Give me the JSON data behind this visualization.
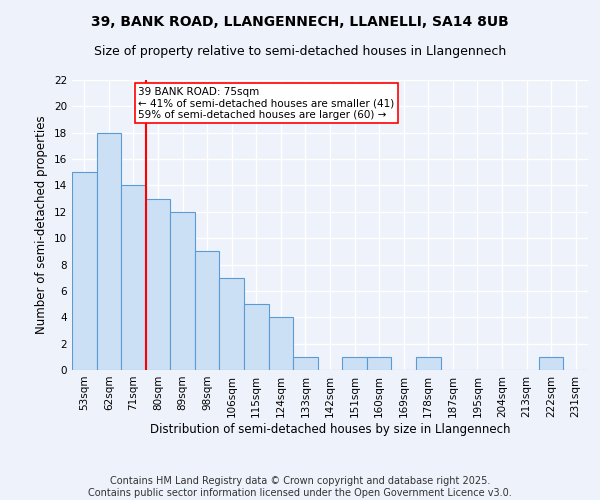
{
  "title": "39, BANK ROAD, LLANGENNECH, LLANELLI, SA14 8UB",
  "subtitle": "Size of property relative to semi-detached houses in Llangennech",
  "xlabel": "Distribution of semi-detached houses by size in Llangennech",
  "ylabel": "Number of semi-detached properties",
  "categories": [
    "53sqm",
    "62sqm",
    "71sqm",
    "80sqm",
    "89sqm",
    "98sqm",
    "106sqm",
    "115sqm",
    "124sqm",
    "133sqm",
    "142sqm",
    "151sqm",
    "160sqm",
    "169sqm",
    "178sqm",
    "187sqm",
    "195sqm",
    "204sqm",
    "213sqm",
    "222sqm",
    "231sqm"
  ],
  "values": [
    15,
    18,
    14,
    13,
    12,
    9,
    7,
    5,
    4,
    1,
    0,
    1,
    1,
    0,
    1,
    0,
    0,
    0,
    0,
    1,
    0
  ],
  "bar_color": "#cce0f5",
  "bar_edge_color": "#5b9bd5",
  "vline_x_index": 2,
  "vline_color": "red",
  "annotation_title": "39 BANK ROAD: 75sqm",
  "annotation_line1": "← 41% of semi-detached houses are smaller (41)",
  "annotation_line2": "59% of semi-detached houses are larger (60) →",
  "annotation_box_color": "white",
  "annotation_box_edge_color": "red",
  "ylim": [
    0,
    22
  ],
  "yticks": [
    0,
    2,
    4,
    6,
    8,
    10,
    12,
    14,
    16,
    18,
    20,
    22
  ],
  "footer_line1": "Contains HM Land Registry data © Crown copyright and database right 2025.",
  "footer_line2": "Contains public sector information licensed under the Open Government Licence v3.0.",
  "background_color": "#eef2fb",
  "grid_color": "#ffffff",
  "title_fontsize": 10,
  "subtitle_fontsize": 9,
  "axis_label_fontsize": 8.5,
  "tick_fontsize": 7.5,
  "footer_fontsize": 7,
  "annotation_fontsize": 7.5
}
